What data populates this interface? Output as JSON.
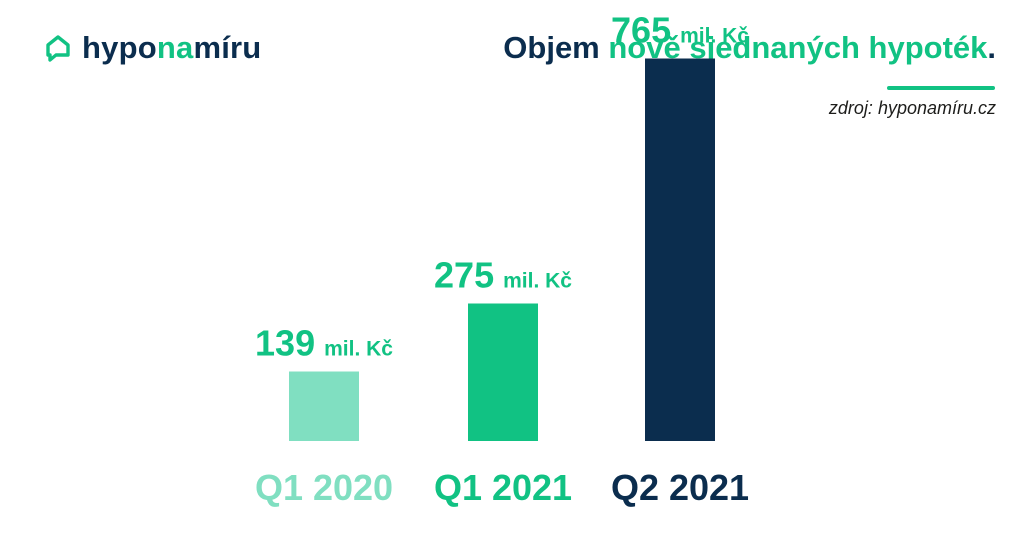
{
  "logo": {
    "part1": "hypo",
    "part2": "na",
    "part3": "míru",
    "icon": "house-chat-icon"
  },
  "title": {
    "part1": "Objem ",
    "part2": "nově sjednaných hypoték",
    "part3": "."
  },
  "source": "zdroj: hyponamíru.cz",
  "colors": {
    "dark": "#0b2d4e",
    "green": "#11c283",
    "light_green": "#80dfc1"
  },
  "chart_data": {
    "type": "bar",
    "categories": [
      "Q1 2020",
      "Q1 2021",
      "Q2 2021"
    ],
    "values": [
      139,
      275,
      765
    ],
    "value_labels": [
      "139",
      "275",
      "765"
    ],
    "unit": "mil. Kč",
    "bar_colors": [
      "#80dfc1",
      "#11c283",
      "#0b2d4e"
    ],
    "label_colors": [
      "#11c283",
      "#11c283",
      "#11c283"
    ],
    "category_colors": [
      "#80dfc1",
      "#11c283",
      "#0b2d4e"
    ],
    "ylim": [
      0,
      800
    ],
    "grid": false,
    "legend": "none"
  }
}
